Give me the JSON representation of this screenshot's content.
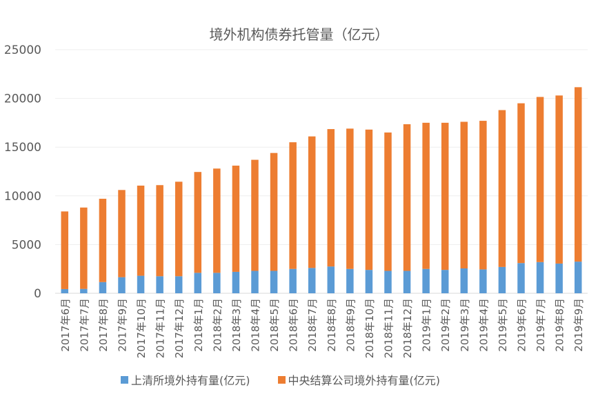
{
  "chart_data": {
    "type": "bar",
    "stacked": true,
    "title": "境外机构债券托管量（亿元）",
    "ylim": [
      0,
      25000
    ],
    "yticks": [
      "0",
      "5000",
      "10000",
      "15000",
      "20000",
      "25000"
    ],
    "grid": true,
    "legend_position": "bottom",
    "categories": [
      "2017年6月",
      "2017年7月",
      "2017年8月",
      "2017年9月",
      "2017年10月",
      "2017年11月",
      "2017年12月",
      "2018年1月",
      "2018年2月",
      "2018年3月",
      "2018年4月",
      "2018年5月",
      "2018年6月",
      "2018年7月",
      "2018年8月",
      "2018年9月",
      "2018年10月",
      "2018年11月",
      "2018年12月",
      "2019年1月",
      "2019年2月",
      "2019年3月",
      "2019年4月",
      "2019年5月",
      "2019年6月",
      "2019年7月",
      "2019年8月",
      "2019年9月"
    ],
    "series": [
      {
        "name": "上清所境外持有量(亿元)",
        "color": "#5b9bd5",
        "values": [
          430,
          450,
          1150,
          1650,
          1800,
          1750,
          1750,
          2100,
          2100,
          2200,
          2300,
          2300,
          2500,
          2600,
          2750,
          2500,
          2400,
          2300,
          2300,
          2500,
          2400,
          2550,
          2450,
          2700,
          3100,
          3200,
          3050,
          3250
        ]
      },
      {
        "name": "中央结算公司境外持有量(亿元)",
        "color": "#ed7d31",
        "values": [
          7970,
          8350,
          8550,
          8950,
          9250,
          9350,
          9700,
          10350,
          10700,
          10900,
          11400,
          12100,
          13000,
          13500,
          14100,
          14400,
          14400,
          14200,
          15050,
          15000,
          15100,
          15050,
          15250,
          16100,
          16400,
          16950,
          17250,
          17900
        ]
      }
    ]
  }
}
